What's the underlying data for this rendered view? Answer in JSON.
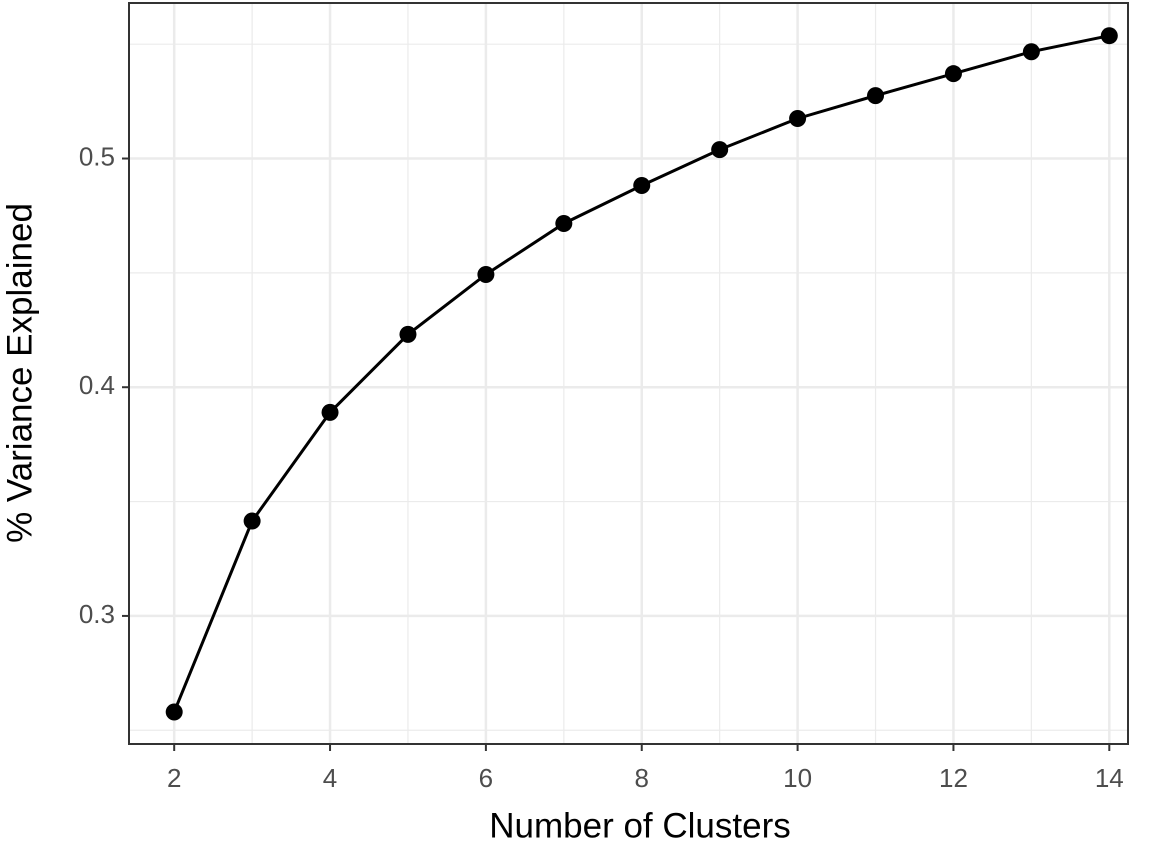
{
  "chart_data": {
    "type": "line",
    "x_label": "Number of Clusters",
    "y_label": "% Variance Explained",
    "x": [
      2,
      3,
      4,
      5,
      6,
      7,
      8,
      9,
      10,
      11,
      12,
      13,
      14
    ],
    "values": [
      0.258,
      0.3415,
      0.389,
      0.4231,
      0.4493,
      0.4716,
      0.4882,
      0.5039,
      0.5175,
      0.5275,
      0.5371,
      0.5467,
      0.5537
    ],
    "color": "#000000",
    "markers": true,
    "xlim": [
      1.42,
      14.24
    ],
    "ylim": [
      0.244,
      0.568
    ],
    "xticks": [
      2,
      4,
      6,
      8,
      10,
      12,
      14
    ],
    "yticks": [
      0.3,
      0.4,
      0.5
    ],
    "x_minor_grid": [
      3,
      5,
      7,
      9,
      11,
      13
    ],
    "y_minor_grid": [
      0.25,
      0.35,
      0.45,
      0.55
    ],
    "grid": true
  }
}
